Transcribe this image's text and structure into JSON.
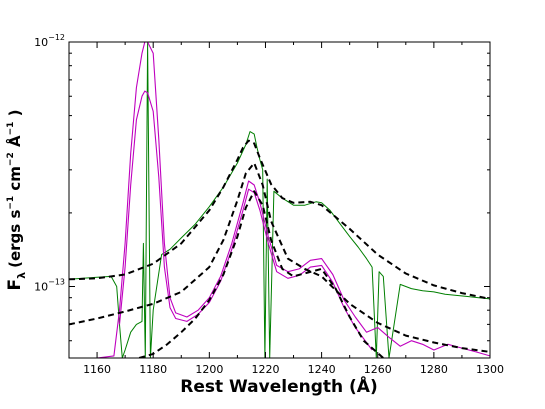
{
  "chart_data": {
    "type": "line",
    "title": "",
    "xlabel": "Rest Wavelength (Å)",
    "ylabel_main": "F",
    "ylabel_sub": "λ",
    "ylabel_units": "(ergs s",
    "ylabel_exp1": "−1",
    "ylabel_cm": " cm",
    "ylabel_exp2": "−2",
    "ylabel_ang": " Å",
    "ylabel_exp3": "−1",
    "ylabel_close": " )",
    "xlim": [
      1150,
      1300
    ],
    "ylim": [
      5.1e-14,
      1e-12
    ],
    "yscale": "log",
    "grid": false,
    "legend": "none",
    "x_ticks": [
      1160,
      1180,
      1200,
      1220,
      1240,
      1260,
      1280,
      1300
    ],
    "x_tick_labels": [
      "1160",
      "1180",
      "1200",
      "1220",
      "1240",
      "1260",
      "1280",
      "1300"
    ],
    "y_ticks": [
      1e-13,
      1e-12
    ],
    "y_tick_labels": [
      {
        "base": "10",
        "exp": "−13"
      },
      {
        "base": "10",
        "exp": "−12"
      }
    ],
    "series": [
      {
        "style": "green-spectrum",
        "color": "#007f00",
        "x": [
          1150,
          1155,
          1160,
          1165,
          1167,
          1168,
          1169,
          1170,
          1172,
          1174,
          1176,
          1176.5,
          1177.2,
          1178,
          1179,
          1180,
          1183,
          1186,
          1190,
          1195,
          1200,
          1205,
          1210,
          1213,
          1214.5,
          1216,
          1217,
          1218,
          1219,
          1219.8,
          1220.6,
          1221.5,
          1223,
          1226,
          1230,
          1234,
          1238,
          1240,
          1243,
          1247,
          1250,
          1253,
          1256,
          1258,
          1259.5,
          1260.5,
          1262,
          1264,
          1268,
          1272,
          1276,
          1280,
          1284,
          1288,
          1292,
          1296,
          1300
        ],
        "y": [
          1.07e-13,
          1.08e-13,
          1.09e-13,
          1.1e-13,
          1e-13,
          7e-14,
          5.1e-14,
          5.5e-14,
          6.5e-14,
          7e-14,
          7.2e-14,
          1.5e-13,
          5.1e-14,
          1e-12,
          5.1e-14,
          8e-14,
          1.35e-13,
          1.42e-13,
          1.58e-13,
          1.8e-13,
          2.12e-13,
          2.55e-13,
          3.2e-13,
          3.8e-13,
          4.3e-13,
          4.2e-13,
          3.7e-13,
          3.3e-13,
          3e-13,
          5.1e-14,
          2.75e-13,
          5.1e-14,
          2.45e-13,
          2.3e-13,
          2.15e-13,
          2.15e-13,
          2.22e-13,
          2.2e-13,
          2.05e-13,
          1.78e-13,
          1.6e-13,
          1.45e-13,
          1.3e-13,
          1.2e-13,
          5.1e-14,
          1.15e-13,
          1.1e-13,
          5.1e-14,
          1.02e-13,
          9.8e-14,
          9.6e-14,
          9.5e-14,
          9.3e-14,
          9.2e-14,
          9.1e-14,
          9e-14,
          8.9e-14
        ]
      },
      {
        "style": "magenta-upper",
        "color": "#bf00bf",
        "x": [
          1150,
          1160,
          1166,
          1168,
          1170,
          1172,
          1174,
          1176,
          1177,
          1178,
          1180,
          1182,
          1184,
          1186,
          1188,
          1192,
          1196,
          1200,
          1204,
          1208,
          1212,
          1214,
          1216,
          1218,
          1221,
          1224,
          1228,
          1232,
          1236,
          1240,
          1244,
          1248,
          1252,
          1256,
          1260,
          1264,
          1268,
          1272,
          1276,
          1280,
          1285,
          1290,
          1295,
          1300
        ],
        "y": [
          5.1e-14,
          5.1e-14,
          5.2e-14,
          8e-14,
          1.5e-13,
          3.5e-13,
          6.5e-13,
          9e-13,
          1e-12,
          1e-12,
          9e-13,
          4e-13,
          1.5e-13,
          9e-14,
          7.8e-14,
          7.5e-14,
          8e-14,
          9e-14,
          1.1e-13,
          1.5e-13,
          2.2e-13,
          2.7e-13,
          2.6e-13,
          2.2e-13,
          1.6e-13,
          1.22e-13,
          1.15e-13,
          1.18e-13,
          1.28e-13,
          1.3e-13,
          1.12e-13,
          8.8e-14,
          7.5e-14,
          6.5e-14,
          6.8e-14,
          6.2e-14,
          5.7e-14,
          6e-14,
          5.8e-14,
          5.5e-14,
          5.8e-14,
          5.6e-14,
          5.4e-14,
          5.2e-14
        ]
      },
      {
        "style": "magenta-lower",
        "color": "#bf00bf",
        "x": [
          1168,
          1170,
          1172,
          1174,
          1176,
          1177,
          1178,
          1180,
          1182,
          1184,
          1186,
          1188,
          1192,
          1196,
          1200,
          1204,
          1208,
          1212,
          1214,
          1216,
          1218,
          1221,
          1224,
          1228,
          1232,
          1236,
          1240,
          1244,
          1248,
          1252,
          1256,
          1258
        ],
        "y": [
          7e-14,
          1.2e-13,
          2.6e-13,
          4.8e-13,
          6e-13,
          6.3e-13,
          6.2e-13,
          5.2e-13,
          2.8e-13,
          1.2e-13,
          8.2e-14,
          7.4e-14,
          7.2e-14,
          7.7e-14,
          8.6e-14,
          1.05e-13,
          1.42e-13,
          2.05e-13,
          2.5e-13,
          2.42e-13,
          2.05e-13,
          1.5e-13,
          1.15e-13,
          1.08e-13,
          1.11e-13,
          1.2e-13,
          1.22e-13,
          1.04e-13,
          8.2e-14,
          6.8e-14,
          5.9e-14,
          5.5e-14
        ]
      },
      {
        "style": "fit-dashed",
        "color": "#000000",
        "x": [
          1150,
          1160,
          1170,
          1180,
          1190,
          1200,
          1205,
          1210,
          1212,
          1214,
          1216,
          1218,
          1222,
          1226,
          1230,
          1236,
          1240,
          1250,
          1260,
          1270,
          1280,
          1290,
          1300
        ],
        "y": [
          1.07e-13,
          1.08e-13,
          1.12e-13,
          1.24e-13,
          1.5e-13,
          2.05e-13,
          2.55e-13,
          3.3e-13,
          3.7e-13,
          3.95e-13,
          3.85e-13,
          3.35e-13,
          2.62e-13,
          2.3e-13,
          2.2e-13,
          2.22e-13,
          2.15e-13,
          1.72e-13,
          1.35e-13,
          1.13e-13,
          1.01e-13,
          9.4e-14,
          8.9e-14
        ]
      },
      {
        "style": "fit-dashed",
        "color": "#000000",
        "x": [
          1150,
          1160,
          1170,
          1180,
          1190,
          1200,
          1205,
          1210,
          1213,
          1216,
          1219,
          1222,
          1228,
          1234,
          1240,
          1250,
          1260,
          1270,
          1280,
          1290,
          1300
        ],
        "y": [
          7e-14,
          7.4e-14,
          7.9e-14,
          8.5e-14,
          9.5e-14,
          1.2e-13,
          1.55e-13,
          2.25e-13,
          2.9e-13,
          3.2e-13,
          2.6e-13,
          1.85e-13,
          1.3e-13,
          1.18e-13,
          1.1e-13,
          8.5e-14,
          7.1e-14,
          6.3e-14,
          5.9e-14,
          5.6e-14,
          5.4e-14
        ]
      },
      {
        "style": "fit-dashed",
        "color": "#000000",
        "x": [
          1175,
          1180,
          1185,
          1190,
          1195,
          1200,
          1205,
          1210,
          1213,
          1216,
          1219,
          1222,
          1226,
          1230,
          1235,
          1240,
          1245,
          1250,
          1255,
          1262
        ],
        "y": [
          5.1e-14,
          5.3e-14,
          5.8e-14,
          6.5e-14,
          7.4e-14,
          8.8e-14,
          1.12e-13,
          1.6e-13,
          2.1e-13,
          2.45e-13,
          2.15e-13,
          1.55e-13,
          1.18e-13,
          1.1e-13,
          1.14e-13,
          1.18e-13,
          9.8e-14,
          7.5e-14,
          6e-14,
          5.1e-14
        ]
      }
    ]
  }
}
